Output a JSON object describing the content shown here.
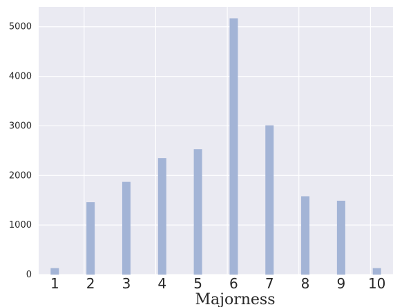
{
  "chart_data": {
    "type": "bar",
    "xlabel": "Majorness",
    "ylabel": "",
    "ylim": [
      0,
      5400
    ],
    "yticks": [
      0,
      1000,
      2000,
      3000,
      4000,
      5000
    ],
    "categories": [
      "1",
      "2",
      "3",
      "4",
      "5",
      "6",
      "7",
      "8",
      "9",
      "10"
    ],
    "x": [
      1,
      2,
      3,
      4,
      5,
      6,
      7,
      8,
      9,
      10
    ],
    "values": [
      130,
      1460,
      1870,
      2350,
      2530,
      5170,
      3010,
      1580,
      1490,
      130
    ],
    "grid": true,
    "bar_color": "#a3b4d6",
    "background_color": "#eaeaf2",
    "grid_color": "#ffffff"
  }
}
